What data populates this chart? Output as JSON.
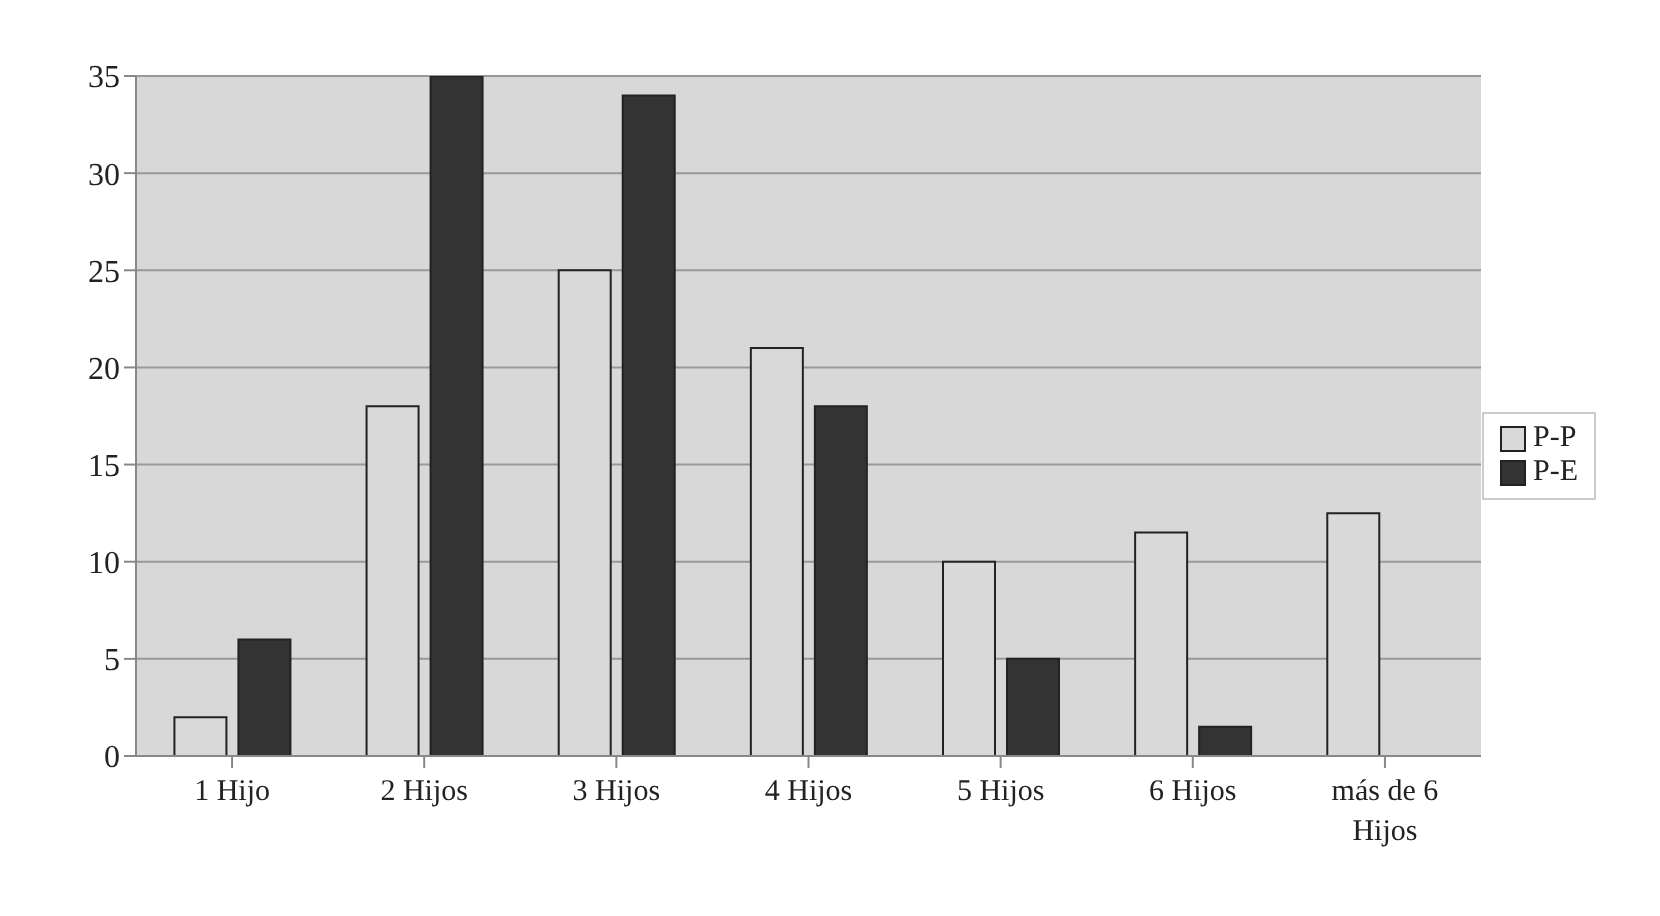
{
  "chart_data": {
    "type": "bar",
    "categories": [
      "1 Hijo",
      "2 Hijos",
      "3 Hijos",
      "4 Hijos",
      "5 Hijos",
      "6 Hijos",
      "más de 6 Hijos"
    ],
    "series": [
      {
        "name": "P-P",
        "color": "#d9d9d9",
        "values": [
          2,
          18,
          25,
          21,
          10,
          11.5,
          12.5
        ]
      },
      {
        "name": "P-E",
        "color": "#333333",
        "values": [
          6,
          35,
          34,
          18,
          5,
          1.5,
          0
        ]
      }
    ],
    "ylim": [
      0,
      35
    ],
    "yticks": [
      0,
      5,
      10,
      15,
      20,
      25,
      30,
      35
    ],
    "grid": "y",
    "legend": "right"
  }
}
